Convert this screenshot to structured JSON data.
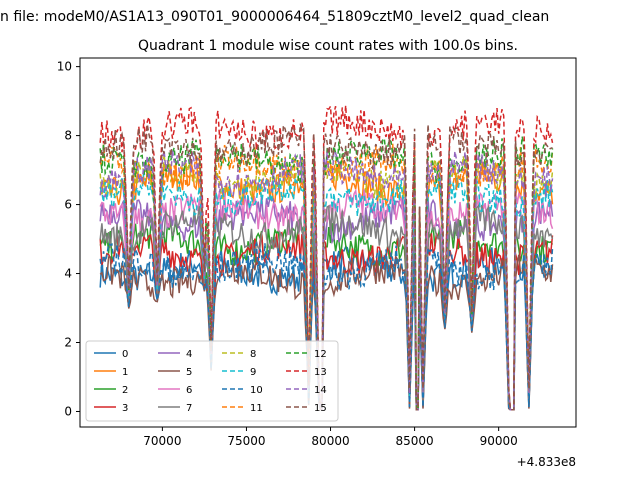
{
  "figure": {
    "suptitle": "n file: modeM0/AS1A13_090T01_9000006464_51809cztM0_level2_quad_clean"
  },
  "chart_data": {
    "type": "line",
    "title": "Quadrant 1 module wise count rates with 100.0s bins.",
    "xlabel": "",
    "ylabel": "",
    "x_offset_label": "+4.833e8",
    "xlim": [
      65100,
      94600
    ],
    "ylim": [
      -0.45,
      10.25
    ],
    "xticks": [
      70000,
      75000,
      80000,
      85000,
      90000
    ],
    "xtick_labels": [
      "70000",
      "75000",
      "80000",
      "85000",
      "90000"
    ],
    "yticks": [
      0,
      2,
      4,
      6,
      8,
      10
    ],
    "ytick_labels": [
      "0",
      "2",
      "4",
      "6",
      "8",
      "10"
    ],
    "grid": false,
    "legend_position": "lower-left",
    "legend_columns": 4,
    "x_range": [
      66300,
      93200
    ],
    "gaps": [
      [
        72900,
        77300
      ],
      [
        79300,
        79600
      ],
      [
        85000,
        85300
      ],
      [
        90600,
        91000
      ]
    ],
    "dips": [
      [
        68000,
        3.0
      ],
      [
        69700,
        3.2
      ],
      [
        72500,
        3.5
      ],
      [
        72900,
        1.2
      ],
      [
        78700,
        0.2
      ],
      [
        79300,
        0.3
      ],
      [
        84700,
        0.1
      ],
      [
        85500,
        0.1
      ],
      [
        86800,
        2.4
      ],
      [
        88400,
        2.3
      ],
      [
        90600,
        0.1
      ],
      [
        91800,
        0.1
      ]
    ],
    "series": [
      {
        "name": "0",
        "color": "#1f77b4",
        "dash": "solid",
        "level": 4.1
      },
      {
        "name": "1",
        "color": "#ff7f0e",
        "dash": "solid",
        "level": 6.6
      },
      {
        "name": "2",
        "color": "#2ca02c",
        "dash": "solid",
        "level": 4.9
      },
      {
        "name": "3",
        "color": "#d62728",
        "dash": "solid",
        "level": 4.6
      },
      {
        "name": "4",
        "color": "#9467bd",
        "dash": "solid",
        "level": 5.6
      },
      {
        "name": "5",
        "color": "#8c564b",
        "dash": "solid",
        "level": 3.9
      },
      {
        "name": "6",
        "color": "#e377c2",
        "dash": "solid",
        "level": 5.8
      },
      {
        "name": "7",
        "color": "#7f7f7f",
        "dash": "solid",
        "level": 5.3
      },
      {
        "name": "8",
        "color": "#bcbd22",
        "dash": "dashed",
        "level": 6.8
      },
      {
        "name": "9",
        "color": "#17becf",
        "dash": "dashed",
        "level": 6.3
      },
      {
        "name": "10",
        "color": "#1f77b4",
        "dash": "dashed",
        "level": 4.2
      },
      {
        "name": "11",
        "color": "#ff7f0e",
        "dash": "dashed",
        "level": 7.1
      },
      {
        "name": "12",
        "color": "#2ca02c",
        "dash": "dashed",
        "level": 7.3
      },
      {
        "name": "13",
        "color": "#d62728",
        "dash": "dashed",
        "level": 8.2
      },
      {
        "name": "14",
        "color": "#9467bd",
        "dash": "dashed",
        "level": 6.9
      },
      {
        "name": "15",
        "color": "#8c564b",
        "dash": "dashed",
        "level": 7.7
      }
    ]
  }
}
